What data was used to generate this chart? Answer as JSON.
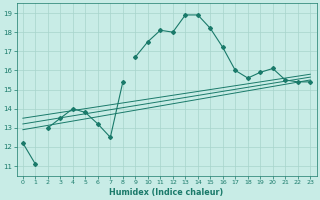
{
  "xlabel": "Humidex (Indice chaleur)",
  "bg_color": "#c8ece6",
  "grid_color": "#a8d4cc",
  "line_color": "#1a7a6a",
  "xlim": [
    -0.5,
    23.5
  ],
  "ylim": [
    10.5,
    19.5
  ],
  "yticks": [
    11,
    12,
    13,
    14,
    15,
    16,
    17,
    18,
    19
  ],
  "xticks": [
    0,
    1,
    2,
    3,
    4,
    5,
    6,
    7,
    8,
    9,
    10,
    11,
    12,
    13,
    14,
    15,
    16,
    17,
    18,
    19,
    20,
    21,
    22,
    23
  ],
  "main_series": {
    "segments": [
      {
        "x": [
          0,
          1
        ],
        "y": [
          12.2,
          11.1
        ]
      },
      {
        "x": [
          2,
          3,
          4,
          5,
          6,
          7,
          8
        ],
        "y": [
          13.0,
          13.5,
          14.0,
          13.8,
          13.2,
          12.5,
          15.4
        ]
      },
      {
        "x": [
          9,
          10,
          11,
          12,
          13,
          14,
          15,
          16,
          17,
          18,
          19,
          20,
          21,
          22,
          23
        ],
        "y": [
          16.7,
          17.5,
          18.1,
          18.0,
          18.9,
          18.9,
          18.2,
          17.2,
          16.0,
          15.6,
          15.9,
          16.1,
          15.5,
          15.4,
          15.4
        ]
      }
    ]
  },
  "linear_series": [
    {
      "x0": 0,
      "y0": 13.5,
      "x1": 23,
      "y1": 15.8
    },
    {
      "x0": 0,
      "y0": 13.2,
      "x1": 23,
      "y1": 15.65
    },
    {
      "x0": 0,
      "y0": 12.9,
      "x1": 23,
      "y1": 15.5
    }
  ]
}
